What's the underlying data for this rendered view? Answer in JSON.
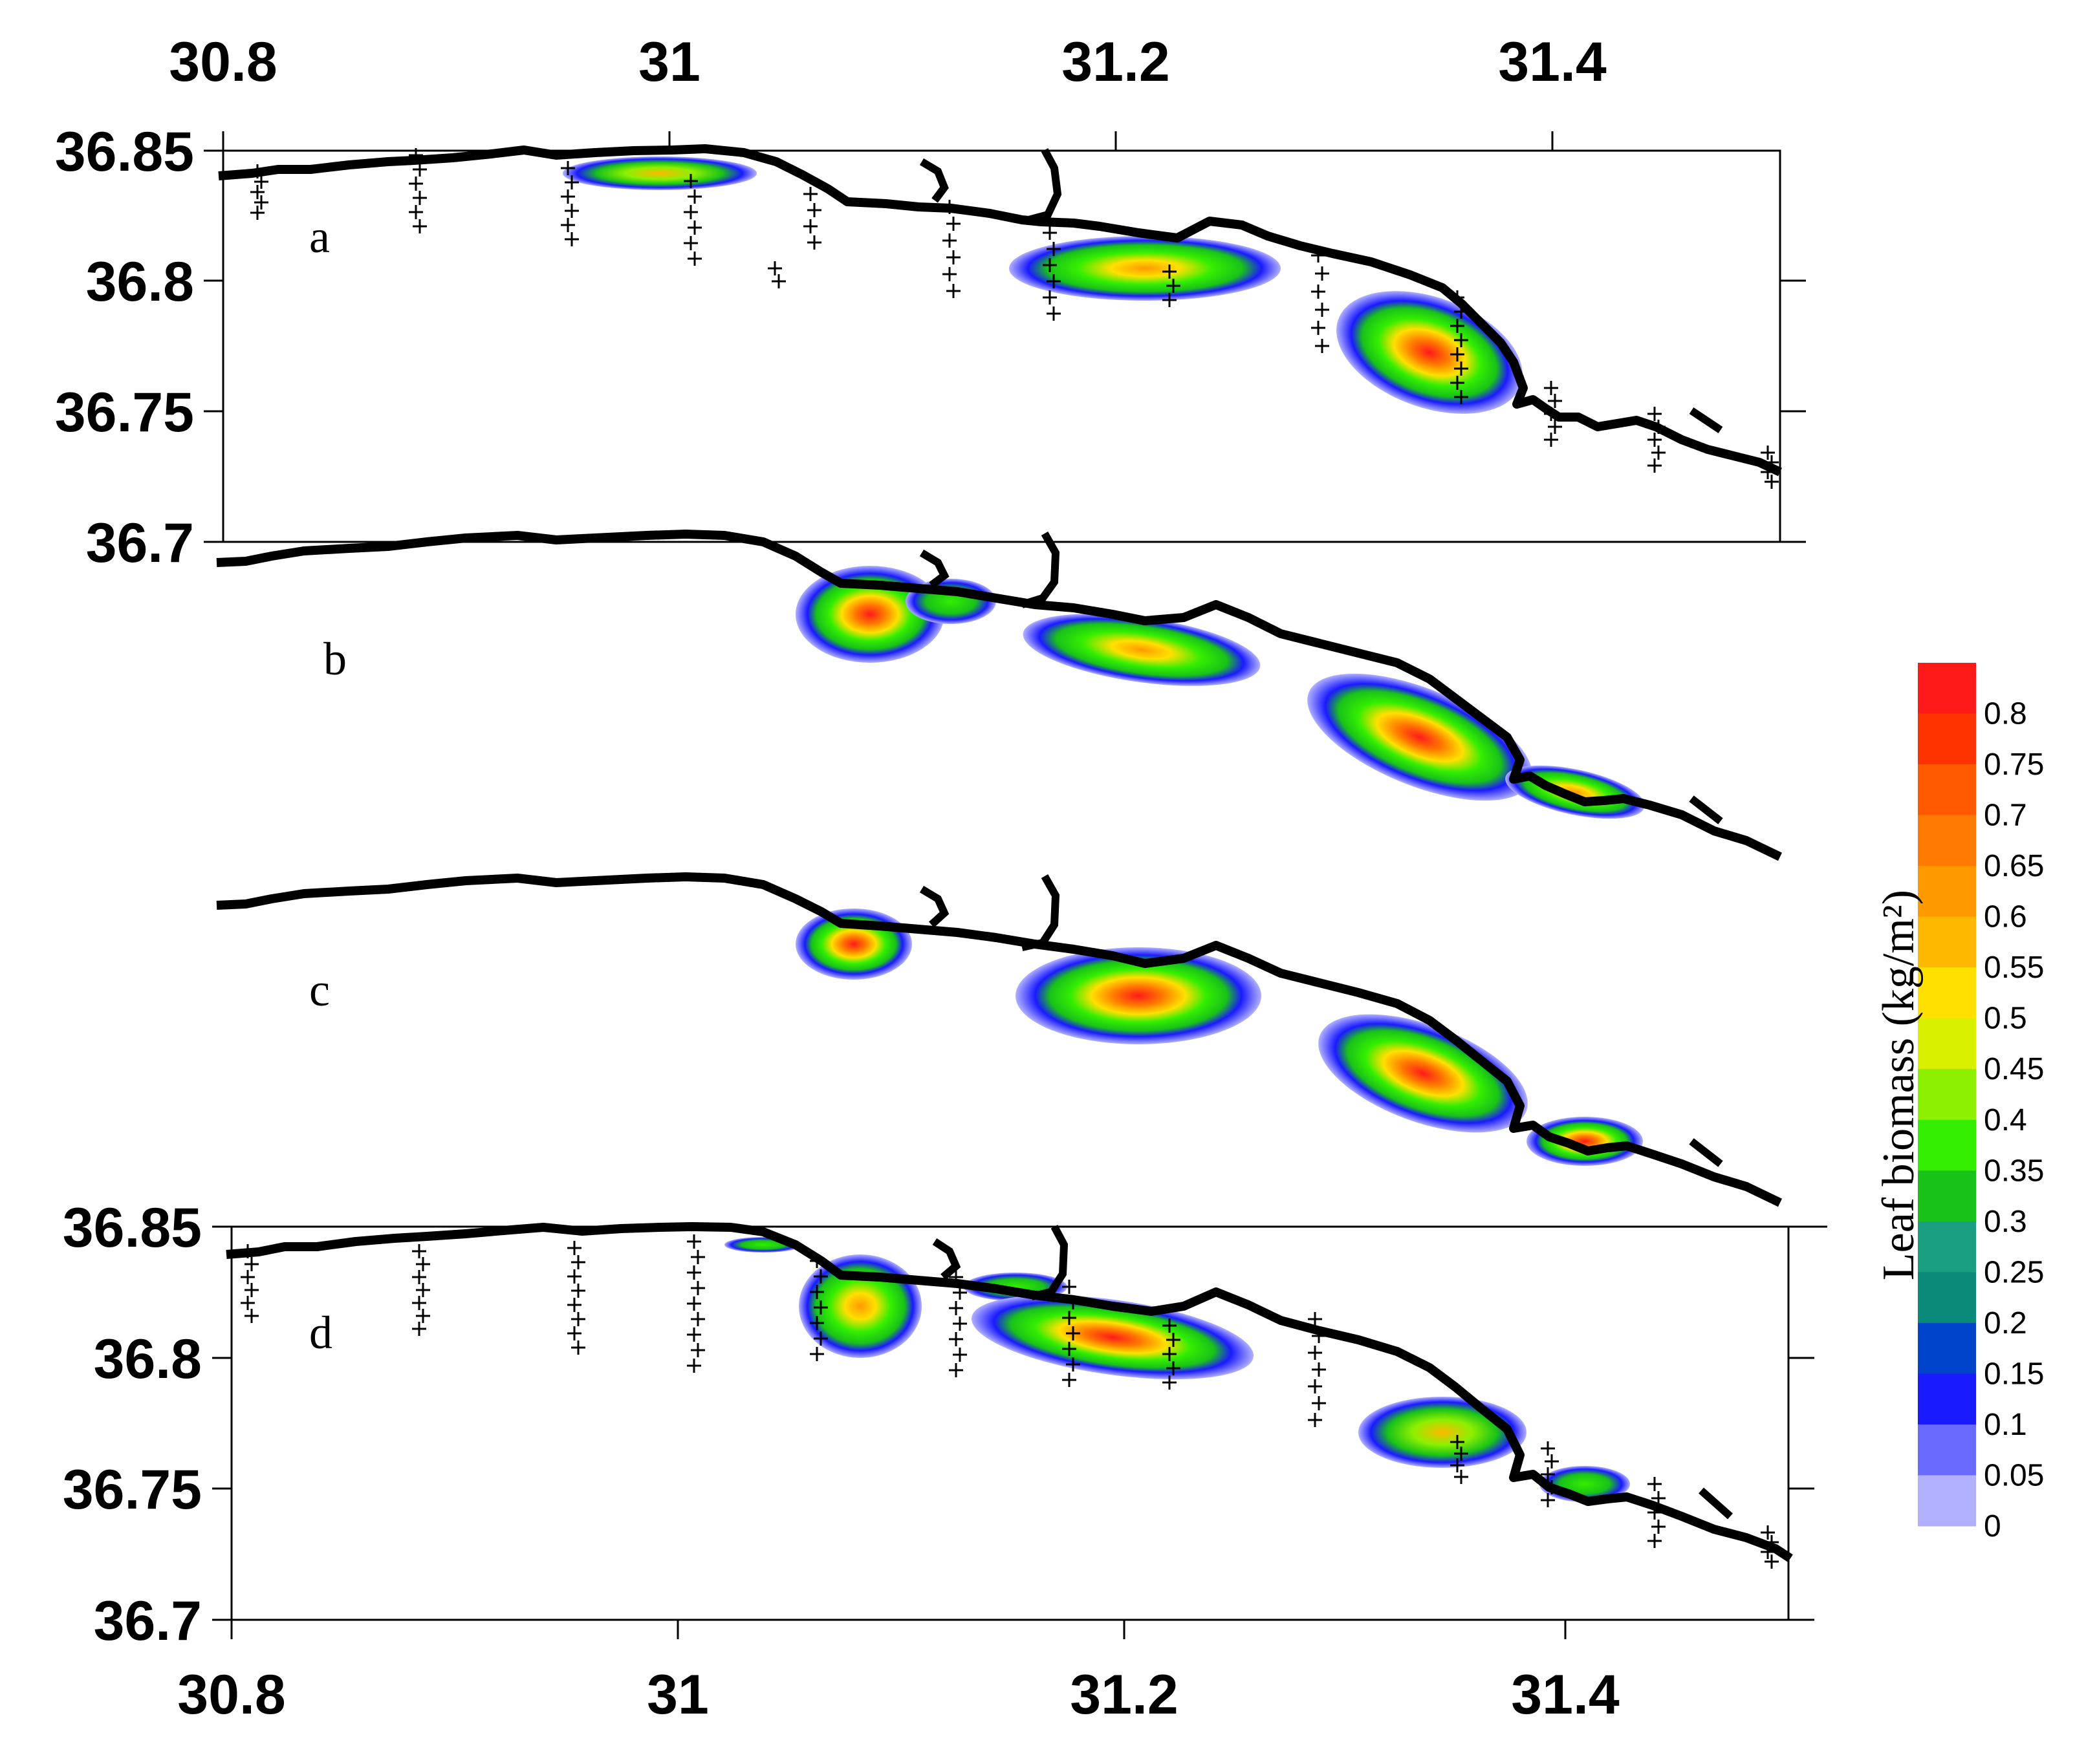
{
  "x_ticks_top": [
    "30.8",
    "31",
    "31.2",
    "31.4"
  ],
  "x_ticks_bottom": [
    "30.8",
    "31",
    "31.2",
    "31.4"
  ],
  "y_ticks_top": [
    "36.85",
    "36.8",
    "36.75",
    "36.7"
  ],
  "y_ticks_bottom": [
    "36.85",
    "36.8",
    "36.75",
    "36.7"
  ],
  "panel_labels": [
    "a",
    "b",
    "c",
    "d"
  ],
  "colorbar": {
    "title": "Leaf biomass (kg/m²)",
    "labels": [
      "0.8",
      "0.75",
      "0.7",
      "0.65",
      "0.6",
      "0.55",
      "0.5",
      "0.45",
      "0.4",
      "0.35",
      "0.3",
      "0.25",
      "0.2",
      "0.15",
      "0.1",
      "0.05",
      "0"
    ],
    "colors": [
      "#ff1a1a",
      "#ff3300",
      "#ff5a00",
      "#ff7a00",
      "#ff9900",
      "#ffb800",
      "#ffe000",
      "#d8f000",
      "#8df000",
      "#33ee00",
      "#19c219",
      "#1aa080",
      "#0a8a78",
      "#0044cc",
      "#1a1aff",
      "#6a6aff",
      "#b0b0ff"
    ]
  },
  "chart_data": {
    "type": "heatmap",
    "x_range": [
      30.8,
      31.5
    ],
    "y_range": [
      36.7,
      36.85
    ],
    "panels": [
      {
        "label": "a",
        "hotspots": [
          {
            "lon": 31.01,
            "lat": 36.843,
            "value": 0.55
          },
          {
            "lon": 31.21,
            "lat": 36.803,
            "value": 0.55
          },
          {
            "lon": 31.35,
            "lat": 36.772,
            "value": 0.75
          }
        ]
      },
      {
        "label": "b",
        "hotspots": [
          {
            "lon": 31.08,
            "lat": 36.822,
            "value": 0.7
          },
          {
            "lon": 31.2,
            "lat": 36.8,
            "value": 0.65
          },
          {
            "lon": 31.35,
            "lat": 36.77,
            "value": 0.75
          },
          {
            "lon": 31.4,
            "lat": 36.75,
            "value": 0.6
          }
        ]
      },
      {
        "label": "c",
        "hotspots": [
          {
            "lon": 31.08,
            "lat": 36.828,
            "value": 0.7
          },
          {
            "lon": 31.2,
            "lat": 36.81,
            "value": 0.7
          },
          {
            "lon": 31.36,
            "lat": 36.768,
            "value": 0.8
          },
          {
            "lon": 31.42,
            "lat": 36.75,
            "value": 0.7
          }
        ]
      },
      {
        "label": "d",
        "hotspots": [
          {
            "lon": 31.08,
            "lat": 36.824,
            "value": 0.6
          },
          {
            "lon": 31.2,
            "lat": 36.806,
            "value": 0.8
          },
          {
            "lon": 31.35,
            "lat": 36.767,
            "value": 0.5
          },
          {
            "lon": 31.4,
            "lat": 36.752,
            "value": 0.3
          }
        ]
      }
    ]
  }
}
